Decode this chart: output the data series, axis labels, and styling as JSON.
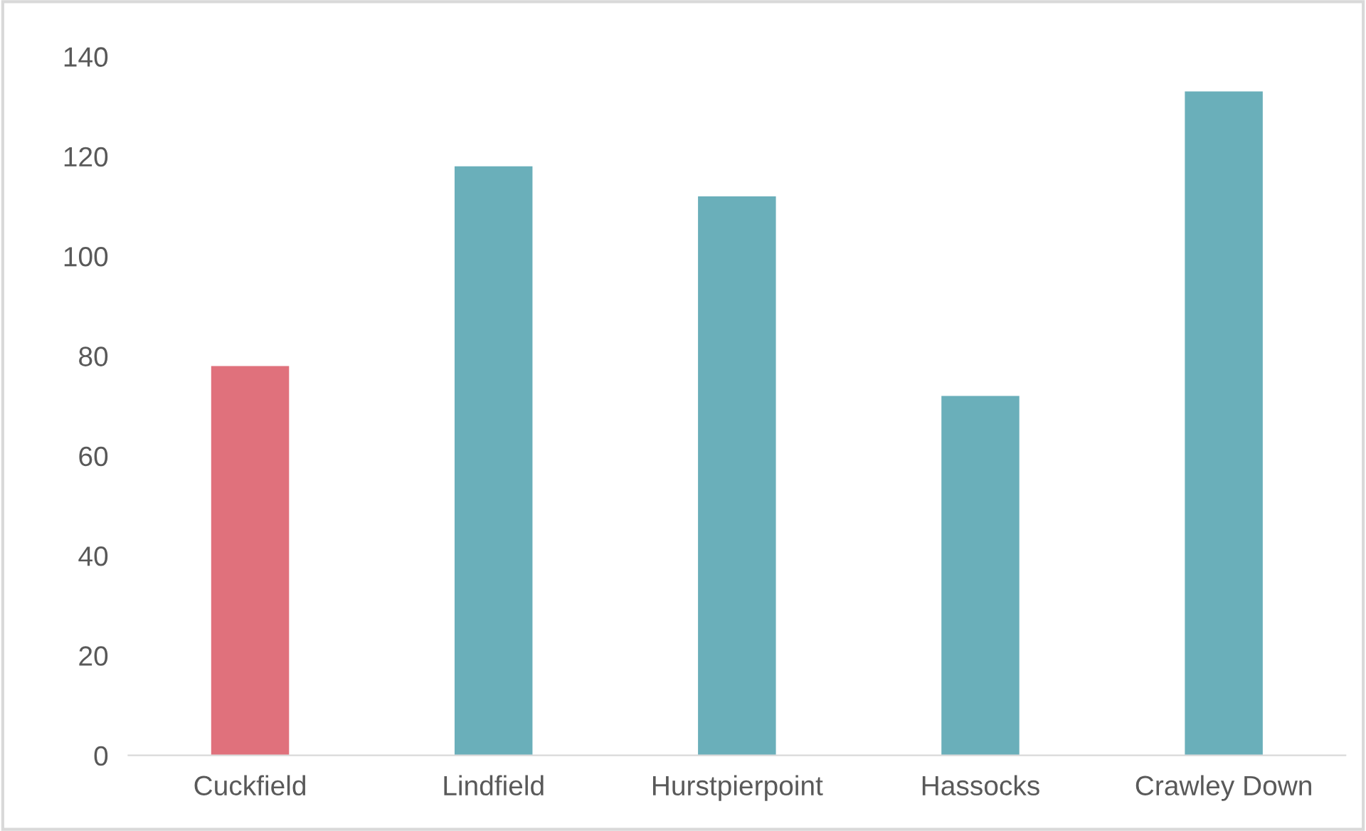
{
  "chart_data": {
    "type": "bar",
    "categories": [
      "Cuckfield",
      "Lindfield",
      "Hurstpierpoint",
      "Hassocks",
      "Crawley Down"
    ],
    "values": [
      78,
      118,
      112,
      72,
      133
    ],
    "colors": [
      "#e0717c",
      "#6aafba",
      "#6aafba",
      "#6aafba",
      "#6aafba"
    ],
    "ylim": [
      0,
      140
    ],
    "yticks": [
      0,
      20,
      40,
      60,
      80,
      100,
      120,
      140
    ],
    "grid": false
  }
}
